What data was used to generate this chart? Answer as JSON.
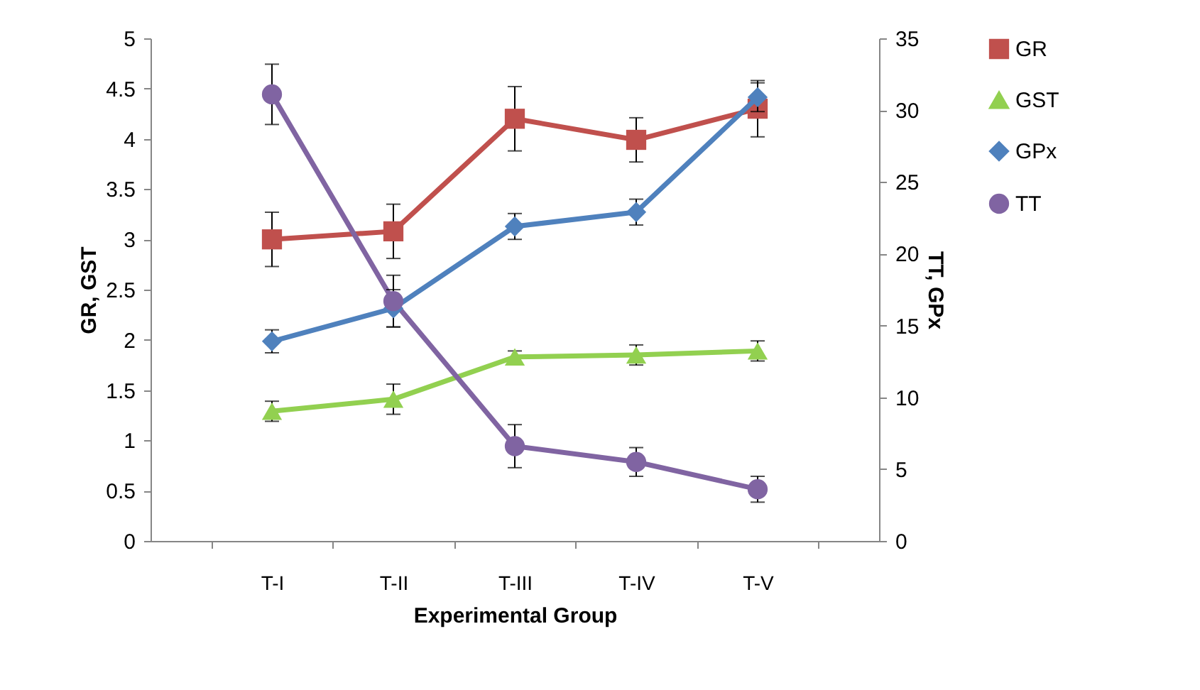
{
  "chart_data": {
    "type": "line",
    "xlabel": "Experimental Group",
    "ylabel": "GR, GST",
    "y2label": "TT, GPx",
    "categories": [
      "T-I",
      "T-II",
      "T-III",
      "T-IV",
      "T-V"
    ],
    "ylim": [
      0,
      5
    ],
    "yticks": [
      0,
      0.5,
      1,
      1.5,
      2,
      2.5,
      3,
      3.5,
      4,
      4.5,
      5
    ],
    "y2lim": [
      0,
      35
    ],
    "y2ticks": [
      0,
      5,
      10,
      15,
      20,
      25,
      30,
      35
    ],
    "grid": false,
    "legend": "right",
    "series": [
      {
        "name": "GR",
        "color": "#c0504d",
        "marker": "square",
        "values": [
          3.0,
          3.08,
          4.2,
          3.99,
          4.3
        ],
        "errors": [
          0.27,
          0.27,
          0.32,
          0.22,
          0.28
        ]
      },
      {
        "name": "GST",
        "color": "#92d050",
        "marker": "triangle",
        "values": [
          1.29,
          1.41,
          1.83,
          1.85,
          1.89
        ],
        "errors": [
          0.1,
          0.15,
          0.06,
          0.1,
          0.1
        ]
      },
      {
        "name": "GPx",
        "color": "#4f81bd",
        "marker": "diamond",
        "axis": "y2",
        "values": [
          13.9,
          16.2,
          21.9,
          22.9,
          30.9
        ],
        "errors": [
          0.8,
          1.3,
          0.9,
          0.9,
          1.0
        ]
      },
      {
        "name": "TT",
        "color": "#8064a2",
        "marker": "circle",
        "axis": "y2",
        "values": [
          31.1,
          16.7,
          6.6,
          5.5,
          3.6
        ],
        "errors": [
          2.1,
          1.8,
          1.5,
          1.0,
          0.9
        ]
      }
    ]
  }
}
